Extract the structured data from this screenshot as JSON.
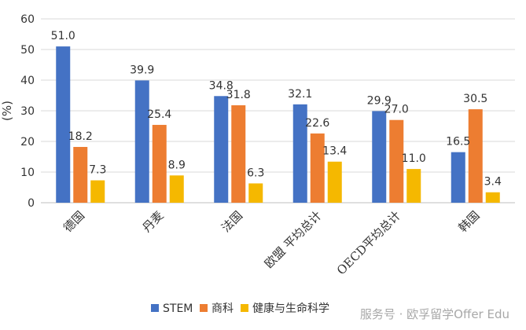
{
  "chart_data": {
    "type": "bar",
    "categories": [
      "德国",
      "丹麦",
      "法国",
      "欧盟 平均总计",
      "OECD平均总计",
      "韩国"
    ],
    "series": [
      {
        "name": "STEM",
        "color": "#4472c4",
        "values": [
          51.0,
          39.9,
          34.8,
          32.1,
          29.9,
          16.5
        ]
      },
      {
        "name": "商科",
        "color": "#ed7d31",
        "values": [
          18.2,
          25.4,
          31.8,
          22.6,
          27.0,
          30.5
        ]
      },
      {
        "name": "健康与生命科学",
        "color": "#f5b800",
        "values": [
          7.3,
          8.9,
          6.3,
          13.4,
          11.0,
          3.4
        ]
      }
    ],
    "title": "",
    "xlabel": "",
    "ylabel": "(%)",
    "ylim": [
      0,
      60
    ],
    "yticks": [
      0,
      10,
      20,
      30,
      40,
      50,
      60
    ],
    "grid": true,
    "legend_position": "bottom"
  },
  "watermark": {
    "text": "服务号 · 欧孚留学Offer Edu"
  }
}
